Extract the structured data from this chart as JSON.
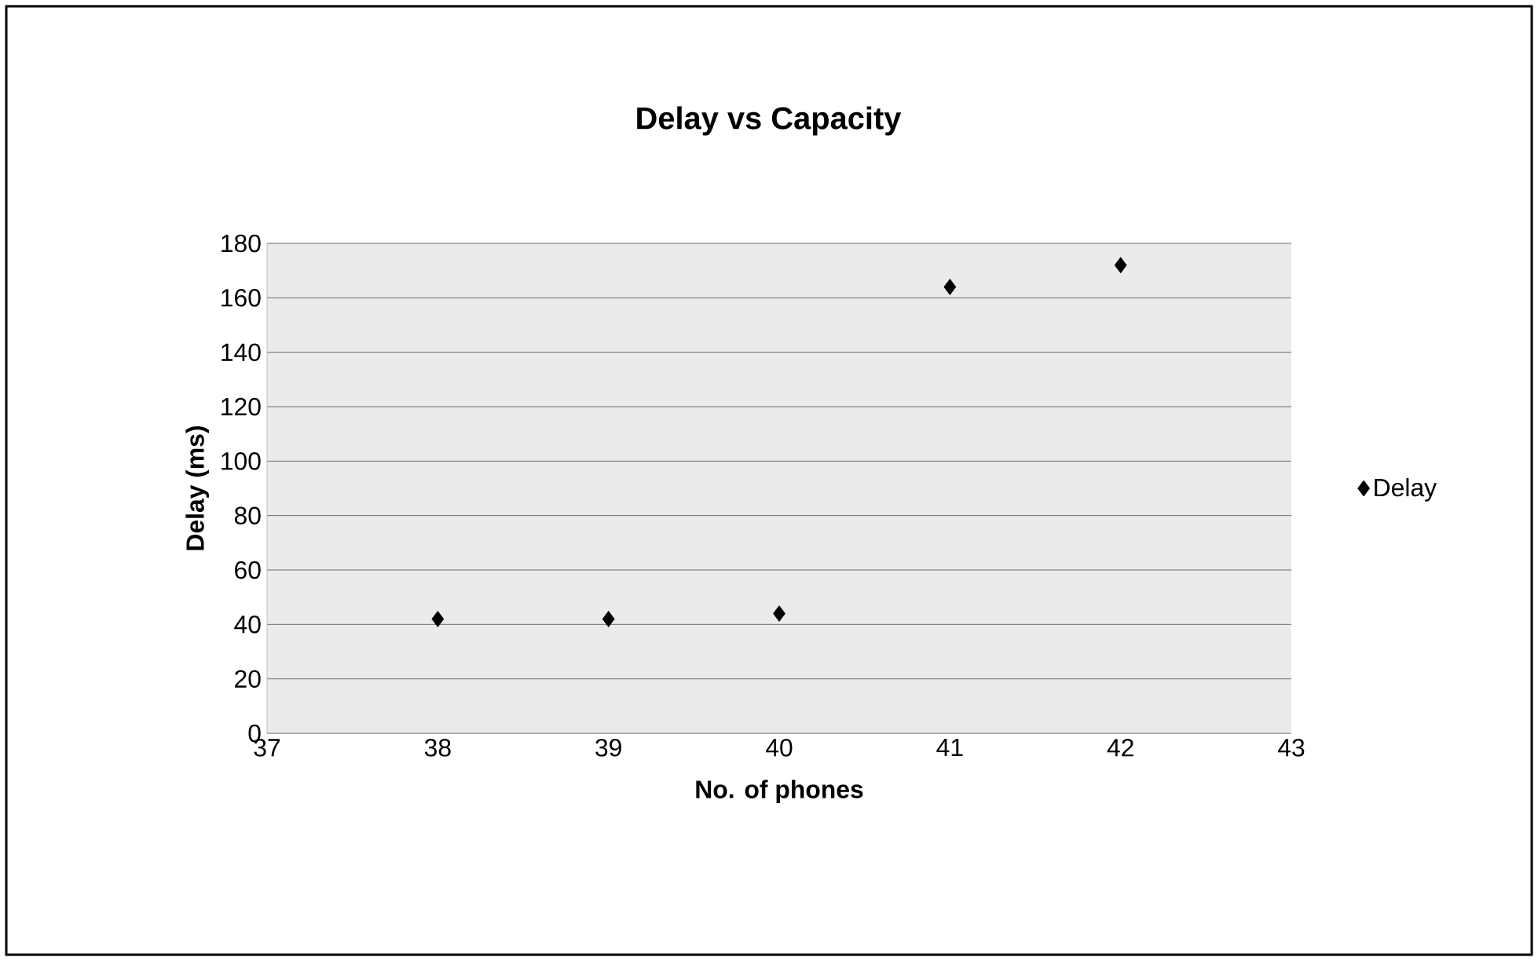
{
  "chart_data": {
    "type": "scatter",
    "title": "Delay vs Capacity",
    "xlabel": "No. of phones",
    "ylabel": "Delay (ms)",
    "x": [
      38,
      39,
      40,
      41,
      42
    ],
    "series": [
      {
        "name": "Delay",
        "color": "#000000",
        "values": [
          42,
          42,
          44,
          164,
          172
        ]
      }
    ],
    "xlim": [
      37,
      43
    ],
    "xticks": [
      37,
      38,
      39,
      40,
      41,
      42,
      43
    ],
    "ylim": [
      0,
      180
    ],
    "yticks": [
      0,
      20,
      40,
      60,
      80,
      100,
      120,
      140,
      160,
      180
    ],
    "grid": "y",
    "legend": "right",
    "marker": "diamond"
  }
}
